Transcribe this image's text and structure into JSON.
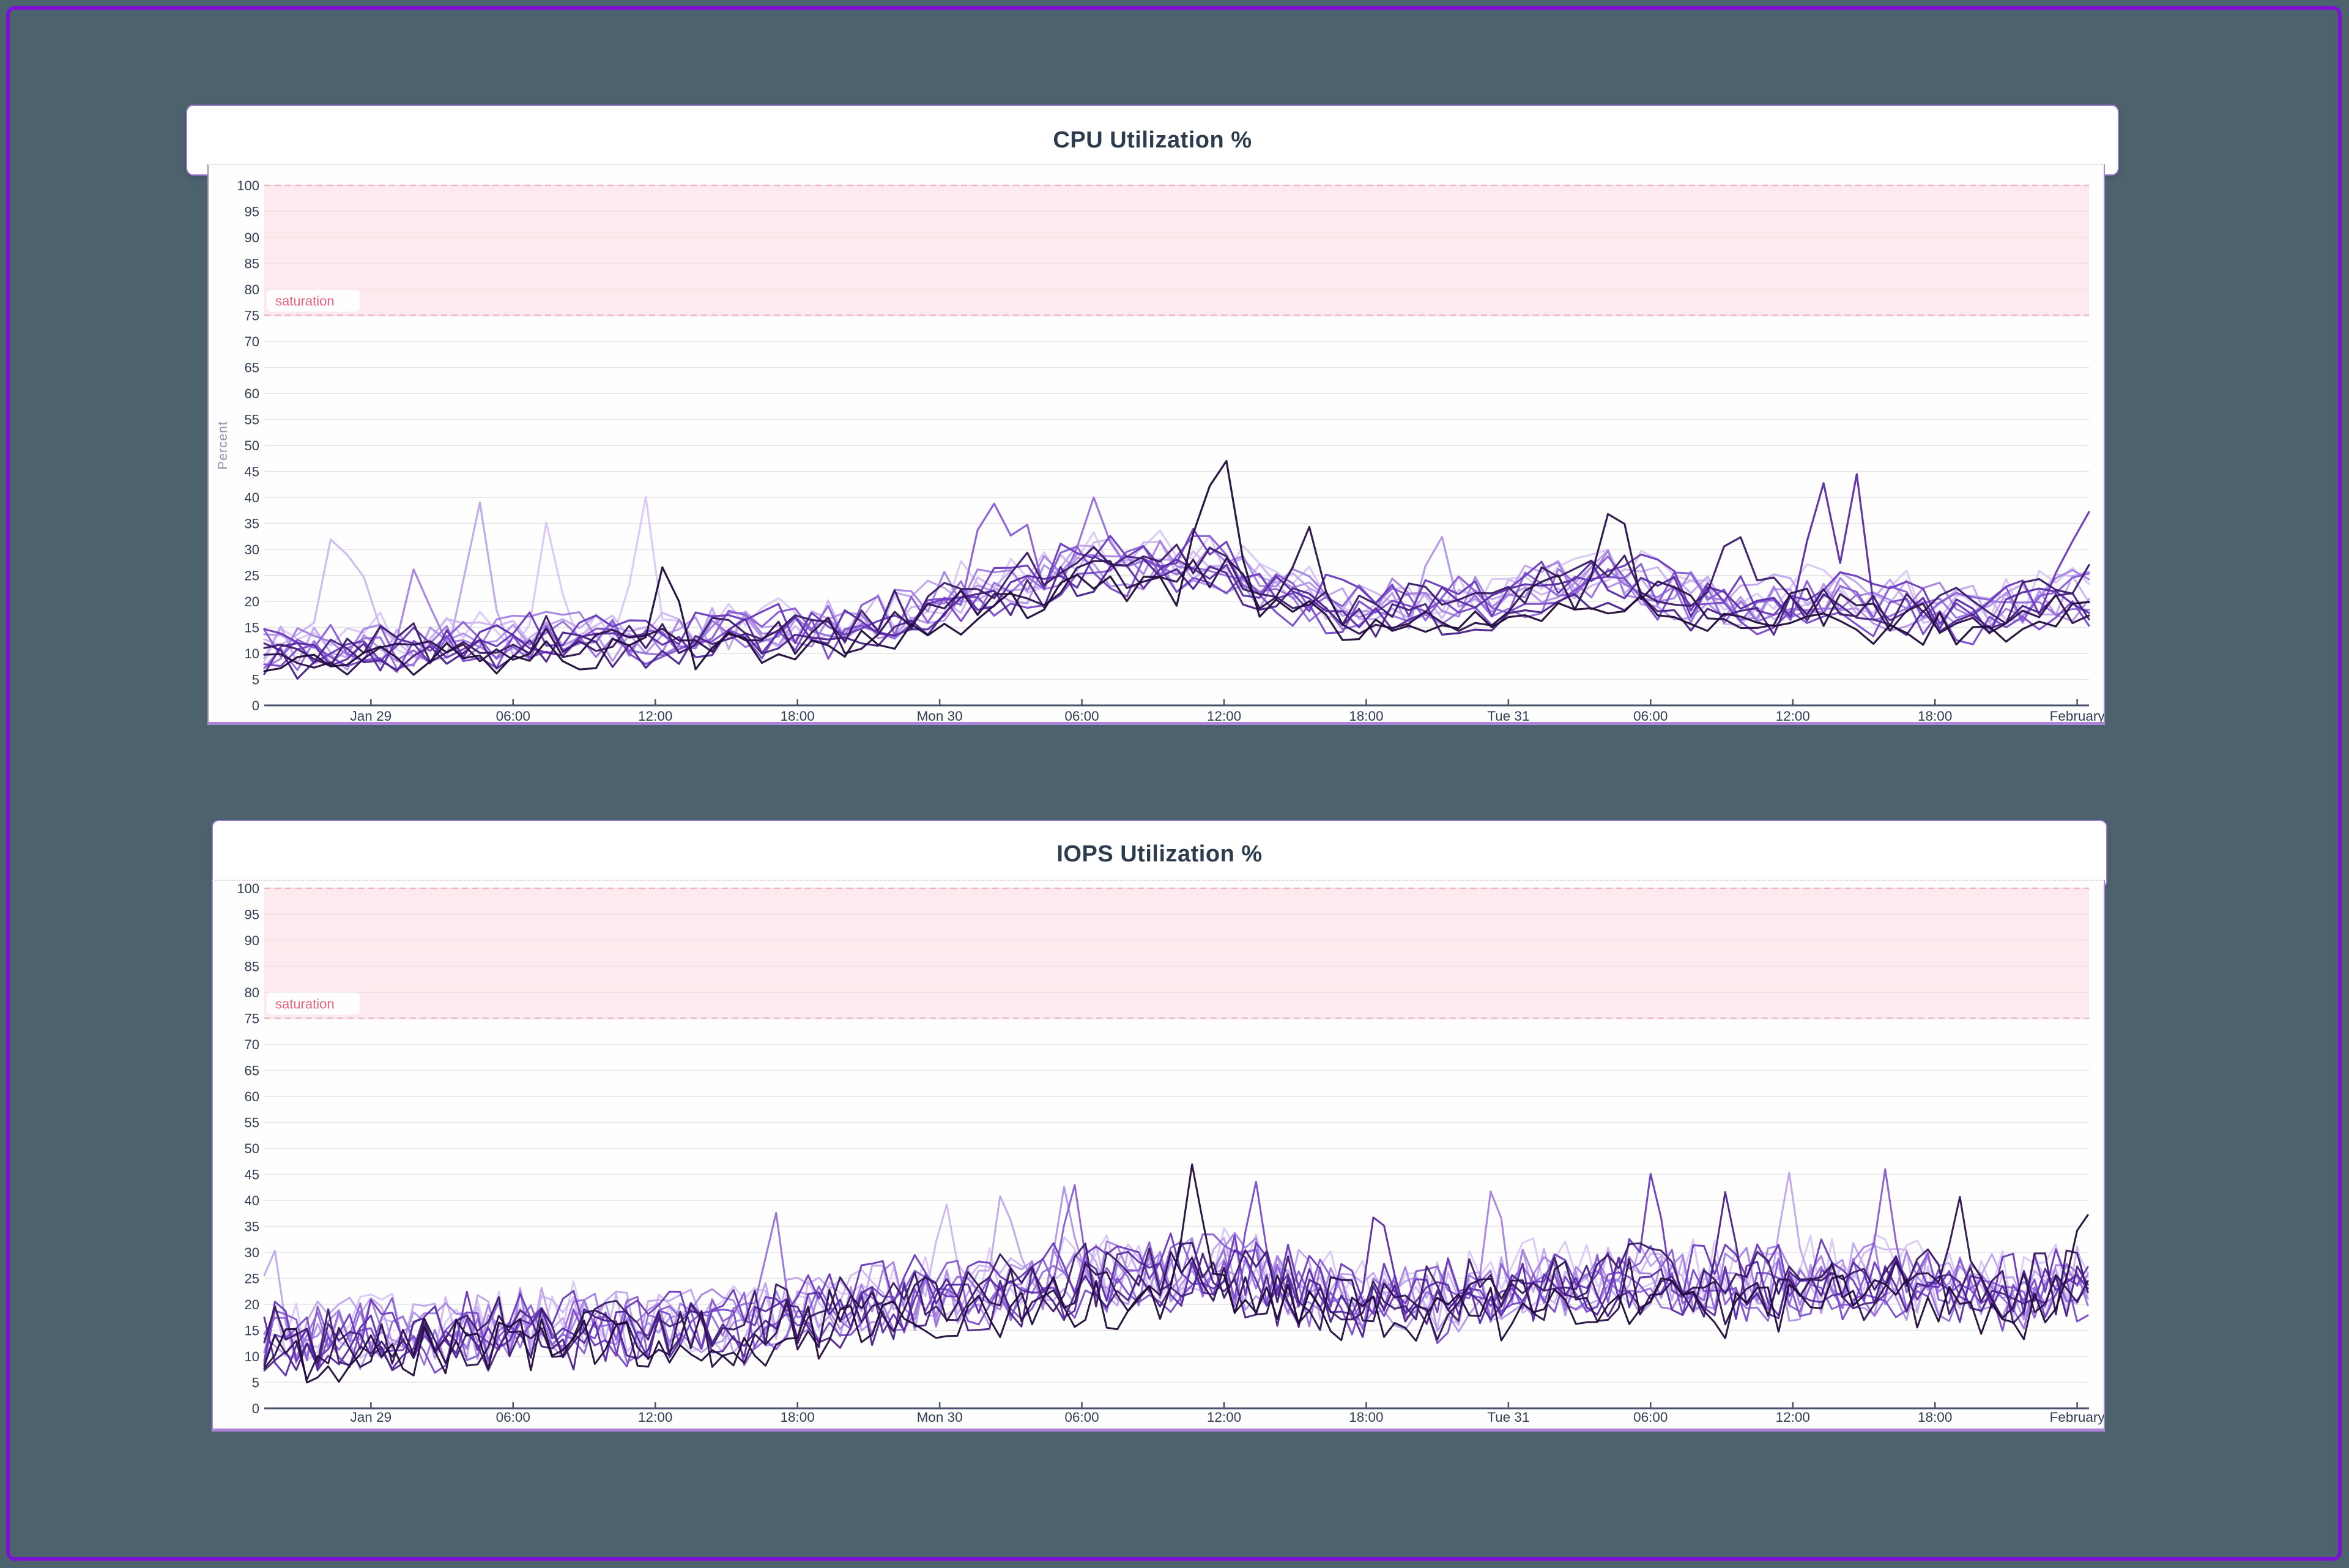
{
  "page": {
    "background": "#4c636d",
    "frame_border_color": "#7b12d4",
    "card_border_color": "#9d79cf"
  },
  "chart_data": [
    {
      "type": "line",
      "title": "CPU Utilization %",
      "ylabel": "Percent",
      "ylim": [
        0,
        100
      ],
      "ytick_step": 5,
      "x_span_hours": 77,
      "grid": true,
      "legend": false,
      "axis_color": "#46536b",
      "grid_color": "#e3e3e3",
      "tick_label_color": "#323f54",
      "ylabel_color": "#938dab",
      "xticks": [
        {
          "label": "Jan 29",
          "h": 4.5
        },
        {
          "label": "06:00",
          "h": 10.5
        },
        {
          "label": "12:00",
          "h": 16.5
        },
        {
          "label": "18:00",
          "h": 22.5
        },
        {
          "label": "Mon 30",
          "h": 28.5
        },
        {
          "label": "06:00",
          "h": 34.5
        },
        {
          "label": "12:00",
          "h": 40.5
        },
        {
          "label": "18:00",
          "h": 46.5
        },
        {
          "label": "Tue 31",
          "h": 52.5
        },
        {
          "label": "06:00",
          "h": 58.5
        },
        {
          "label": "12:00",
          "h": 64.5
        },
        {
          "label": "18:00",
          "h": 70.5
        },
        {
          "label": "February",
          "h": 76.5
        }
      ],
      "threshold_band": {
        "from": 75,
        "to": 100,
        "label": "saturation",
        "fill": "#fbd9e2",
        "edge": "#f2b4c4",
        "label_color": "#ee5f7d"
      },
      "noise_step_hours": 0.7,
      "trend": [
        [
          0,
          10
        ],
        [
          4,
          11
        ],
        [
          8,
          12
        ],
        [
          12,
          13
        ],
        [
          16,
          13
        ],
        [
          20,
          14
        ],
        [
          24,
          15
        ],
        [
          27,
          18
        ],
        [
          30,
          22
        ],
        [
          33,
          25
        ],
        [
          36,
          28
        ],
        [
          38,
          27
        ],
        [
          40,
          28
        ],
        [
          42,
          24
        ],
        [
          44,
          21
        ],
        [
          46,
          19
        ],
        [
          48,
          19
        ],
        [
          50,
          20
        ],
        [
          52,
          20
        ],
        [
          54,
          23
        ],
        [
          56,
          25
        ],
        [
          58,
          24
        ],
        [
          60,
          21
        ],
        [
          62,
          19
        ],
        [
          64,
          20
        ],
        [
          66,
          21
        ],
        [
          68,
          19
        ],
        [
          70,
          19
        ],
        [
          72,
          18
        ],
        [
          74,
          19
        ],
        [
          77,
          22
        ]
      ],
      "series": [
        {
          "color": "#d9c8f5",
          "scale": 1.0,
          "offset": 2.0,
          "amp": 5.0,
          "seed": 101
        },
        {
          "color": "#cdb6f1",
          "scale": 0.95,
          "offset": 1.5,
          "amp": 4.5,
          "seed": 102
        },
        {
          "color": "#c0a5ed",
          "scale": 1.0,
          "offset": 1.0,
          "amp": 4.5,
          "seed": 103
        },
        {
          "color": "#b293e8",
          "scale": 0.92,
          "offset": 0.5,
          "amp": 4.0,
          "seed": 104
        },
        {
          "color": "#a481e2",
          "scale": 1.05,
          "offset": 0.0,
          "amp": 4.5,
          "seed": 105
        },
        {
          "color": "#9670db",
          "scale": 0.95,
          "offset": 0.0,
          "amp": 4.0,
          "seed": 106
        },
        {
          "color": "#885dd3",
          "scale": 1.0,
          "offset": 0.5,
          "amp": 4.5,
          "seed": 107
        },
        {
          "color": "#794aca",
          "scale": 0.9,
          "offset": -0.5,
          "amp": 4.0,
          "seed": 108
        },
        {
          "color": "#6a39bb",
          "scale": 1.08,
          "offset": 0.0,
          "amp": 4.5,
          "seed": 109
        },
        {
          "color": "#5a2ba6",
          "scale": 1.0,
          "offset": -1.0,
          "amp": 4.0,
          "seed": 110
        },
        {
          "color": "#4a2288",
          "scale": 0.95,
          "offset": -1.5,
          "amp": 4.0,
          "seed": 111
        },
        {
          "color": "#3a1a67",
          "scale": 1.05,
          "offset": -0.5,
          "amp": 4.5,
          "seed": 112
        },
        {
          "color": "#2b114c",
          "scale": 1.0,
          "offset": -2.0,
          "amp": 4.0,
          "seed": 113
        },
        {
          "color": "#1f0b38",
          "scale": 0.9,
          "offset": -2.0,
          "amp": 3.5,
          "seed": 114
        }
      ],
      "spikes": [
        {
          "series": 1,
          "h": 3.1,
          "v": 41,
          "w": 1.0
        },
        {
          "series": 1,
          "h": 4.1,
          "v": 27,
          "w": 0.7
        },
        {
          "series": 4,
          "h": 6.5,
          "v": 31,
          "w": 0.8
        },
        {
          "series": 2,
          "h": 9.0,
          "v": 42,
          "w": 1.0
        },
        {
          "series": 0,
          "h": 12.0,
          "v": 38,
          "w": 0.9
        },
        {
          "series": 0,
          "h": 16.0,
          "v": 43.5,
          "w": 0.9
        },
        {
          "series": 13,
          "h": 17.0,
          "v": 31,
          "w": 0.8
        },
        {
          "series": 6,
          "h": 30.6,
          "v": 42,
          "w": 1.2
        },
        {
          "series": 6,
          "h": 31.9,
          "v": 40,
          "w": 0.9
        },
        {
          "series": 5,
          "h": 35.0,
          "v": 40,
          "w": 1.0
        },
        {
          "series": 13,
          "h": 39.8,
          "v": 44,
          "w": 0.9
        },
        {
          "series": 13,
          "h": 40.6,
          "v": 47,
          "w": 0.8
        },
        {
          "series": 12,
          "h": 44.0,
          "v": 36,
          "w": 0.9
        },
        {
          "series": 3,
          "h": 49.5,
          "v": 36,
          "w": 0.9
        },
        {
          "series": 12,
          "h": 57.0,
          "v": 42,
          "w": 1.0
        },
        {
          "series": 11,
          "h": 62.0,
          "v": 38,
          "w": 1.0
        },
        {
          "series": 9,
          "h": 65.6,
          "v": 50,
          "w": 0.8
        },
        {
          "series": 9,
          "h": 67.1,
          "v": 48,
          "w": 0.8
        },
        {
          "series": 8,
          "h": 77.5,
          "v": 41,
          "w": 2.5
        }
      ]
    },
    {
      "type": "line",
      "title": "IOPS Utilization %",
      "ylabel": "",
      "ylim": [
        0,
        100
      ],
      "ytick_step": 5,
      "x_span_hours": 77,
      "grid": true,
      "legend": false,
      "axis_color": "#46536b",
      "grid_color": "#e3e3e3",
      "tick_label_color": "#323f54",
      "ylabel_color": "#938dab",
      "xticks": [
        {
          "label": "Jan 29",
          "h": 4.5
        },
        {
          "label": "06:00",
          "h": 10.5
        },
        {
          "label": "12:00",
          "h": 16.5
        },
        {
          "label": "18:00",
          "h": 22.5
        },
        {
          "label": "Mon 30",
          "h": 28.5
        },
        {
          "label": "06:00",
          "h": 34.5
        },
        {
          "label": "12:00",
          "h": 40.5
        },
        {
          "label": "18:00",
          "h": 46.5
        },
        {
          "label": "Tue 31",
          "h": 52.5
        },
        {
          "label": "06:00",
          "h": 58.5
        },
        {
          "label": "12:00",
          "h": 64.5
        },
        {
          "label": "18:00",
          "h": 70.5
        },
        {
          "label": "February",
          "h": 76.5
        }
      ],
      "threshold_band": {
        "from": 75,
        "to": 100,
        "label": "saturation",
        "fill": "#fbd9e2",
        "edge": "#f2b4c4",
        "label_color": "#ee5f7d"
      },
      "noise_step_hours": 0.45,
      "trend": [
        [
          0,
          13
        ],
        [
          4,
          14
        ],
        [
          8,
          15
        ],
        [
          12,
          16
        ],
        [
          16,
          15
        ],
        [
          20,
          16
        ],
        [
          24,
          19
        ],
        [
          28,
          22
        ],
        [
          32,
          24
        ],
        [
          36,
          25
        ],
        [
          40,
          27
        ],
        [
          42,
          25
        ],
        [
          46,
          21
        ],
        [
          50,
          21
        ],
        [
          54,
          24
        ],
        [
          58,
          25
        ],
        [
          62,
          23
        ],
        [
          66,
          25
        ],
        [
          70,
          24
        ],
        [
          74,
          22
        ],
        [
          77,
          25
        ]
      ],
      "series": [
        {
          "color": "#d9c8f5",
          "scale": 1.0,
          "offset": 2.0,
          "amp": 7.0,
          "seed": 201
        },
        {
          "color": "#cdb6f1",
          "scale": 0.95,
          "offset": 1.5,
          "amp": 6.5,
          "seed": 202
        },
        {
          "color": "#c0a5ed",
          "scale": 1.0,
          "offset": 1.0,
          "amp": 6.5,
          "seed": 203
        },
        {
          "color": "#b293e8",
          "scale": 0.92,
          "offset": 0.5,
          "amp": 6.0,
          "seed": 204
        },
        {
          "color": "#a481e2",
          "scale": 1.05,
          "offset": 0.0,
          "amp": 6.5,
          "seed": 205
        },
        {
          "color": "#9670db",
          "scale": 0.95,
          "offset": 0.0,
          "amp": 6.0,
          "seed": 206
        },
        {
          "color": "#885dd3",
          "scale": 1.0,
          "offset": 0.5,
          "amp": 6.5,
          "seed": 207
        },
        {
          "color": "#794aca",
          "scale": 0.9,
          "offset": -0.5,
          "amp": 6.0,
          "seed": 208
        },
        {
          "color": "#6a39bb",
          "scale": 1.08,
          "offset": 0.0,
          "amp": 6.5,
          "seed": 209
        },
        {
          "color": "#5a2ba6",
          "scale": 1.0,
          "offset": -1.0,
          "amp": 6.0,
          "seed": 210
        },
        {
          "color": "#4a2288",
          "scale": 0.95,
          "offset": -1.5,
          "amp": 6.0,
          "seed": 211
        },
        {
          "color": "#3a1a67",
          "scale": 1.05,
          "offset": -0.5,
          "amp": 6.5,
          "seed": 212
        },
        {
          "color": "#2b114c",
          "scale": 1.0,
          "offset": -2.0,
          "amp": 6.0,
          "seed": 213
        },
        {
          "color": "#1f0b38",
          "scale": 0.9,
          "offset": -2.0,
          "amp": 5.5,
          "seed": 214
        }
      ],
      "spikes": [
        {
          "series": 2,
          "h": 0.3,
          "v": 35,
          "w": 0.7
        },
        {
          "series": 5,
          "h": 21.5,
          "v": 41,
          "w": 0.7
        },
        {
          "series": 1,
          "h": 28.7,
          "v": 42,
          "w": 0.7
        },
        {
          "series": 2,
          "h": 31.2,
          "v": 45.5,
          "w": 0.7
        },
        {
          "series": 3,
          "h": 33.8,
          "v": 44,
          "w": 0.7
        },
        {
          "series": 6,
          "h": 34.1,
          "v": 46,
          "w": 0.7
        },
        {
          "series": 13,
          "h": 39.2,
          "v": 48.5,
          "w": 0.7
        },
        {
          "series": 7,
          "h": 41.8,
          "v": 45,
          "w": 0.7
        },
        {
          "series": 9,
          "h": 47.0,
          "v": 43,
          "w": 0.7
        },
        {
          "series": 4,
          "h": 51.9,
          "v": 47,
          "w": 0.7
        },
        {
          "series": 8,
          "h": 58.6,
          "v": 48.5,
          "w": 0.7
        },
        {
          "series": 10,
          "h": 61.7,
          "v": 43,
          "w": 0.7
        },
        {
          "series": 2,
          "h": 64.3,
          "v": 47,
          "w": 0.7
        },
        {
          "series": 6,
          "h": 68.4,
          "v": 46,
          "w": 0.7
        },
        {
          "series": 12,
          "h": 71.5,
          "v": 42,
          "w": 0.7
        },
        {
          "series": 13,
          "h": 76.8,
          "v": 40,
          "w": 0.8
        }
      ]
    }
  ]
}
